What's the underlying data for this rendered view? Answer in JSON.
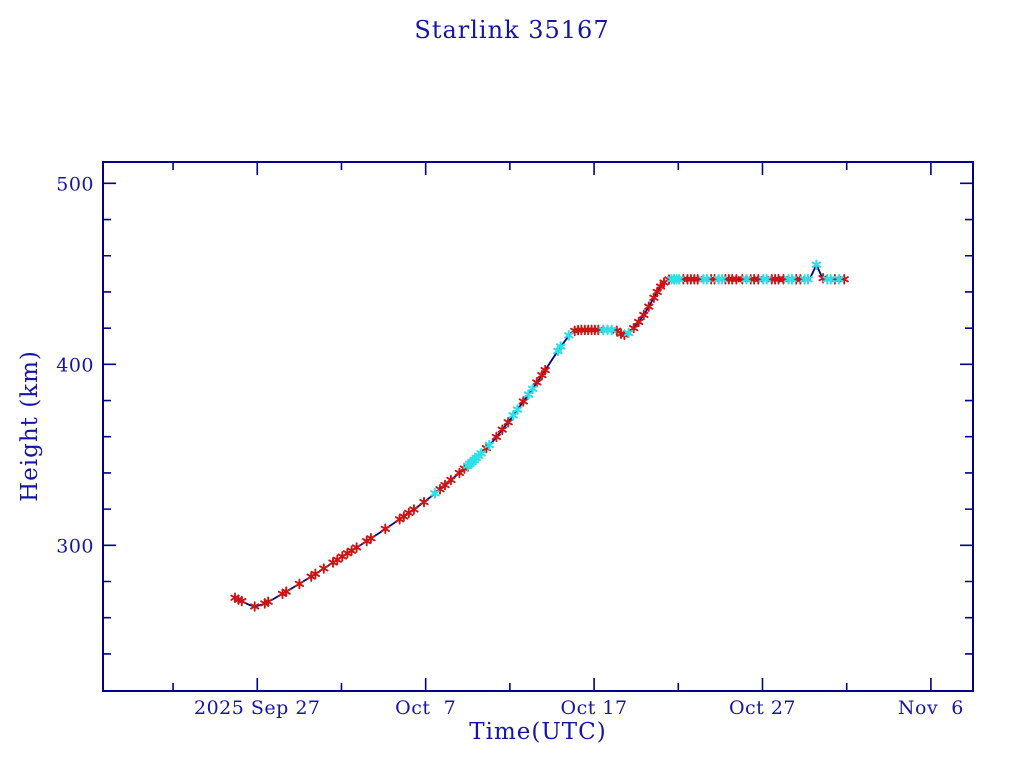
{
  "title": "Starlink 35167",
  "colors": {
    "text": "#1414aa",
    "frame": "#00008b",
    "line": "#000088",
    "marker_red": "#cc1414",
    "marker_cyan": "#2edfe6"
  },
  "chart_data": {
    "type": "line",
    "title": "Starlink 35167",
    "xlabel": "Time(UTC)",
    "ylabel": "Height (km)",
    "x_unit": "days since 2025 Sep 27 00:00 UTC",
    "y_unit": "km",
    "grid": false,
    "legend": "none",
    "x_range": [
      -9.16,
      42.5
    ],
    "y_range": [
      219.5,
      511.8
    ],
    "x_major_ticks": [
      {
        "t": 0,
        "label": "2025 Sep 27"
      },
      {
        "t": 10,
        "label": "Oct  7"
      },
      {
        "t": 20,
        "label": "Oct 17"
      },
      {
        "t": 30,
        "label": "Oct 27"
      },
      {
        "t": 40,
        "label": "Nov  6"
      }
    ],
    "x_minor_ticks": [
      -5,
      5,
      15,
      25,
      35
    ],
    "y_major_ticks": [
      {
        "v": 300,
        "label": "300"
      },
      {
        "v": 400,
        "label": "400"
      },
      {
        "v": 500,
        "label": "500"
      }
    ],
    "y_minor_ticks": [
      240,
      260,
      280,
      320,
      340,
      360,
      380,
      420,
      440,
      460,
      480
    ],
    "line": [
      [
        -1.32,
        271
      ],
      [
        -0.9,
        269
      ],
      [
        -0.5,
        267.2
      ],
      [
        -0.14,
        266.2
      ],
      [
        0.3,
        267.3
      ],
      [
        0.9,
        270
      ],
      [
        1.6,
        273.8
      ],
      [
        2.3,
        277.6
      ],
      [
        3,
        281.6
      ],
      [
        3.7,
        285.7
      ],
      [
        4.4,
        289.9
      ],
      [
        5.1,
        294.1
      ],
      [
        5.8,
        298.2
      ],
      [
        6.5,
        302.3
      ],
      [
        7.2,
        306.5
      ],
      [
        7.9,
        310.9
      ],
      [
        8.6,
        315.3
      ],
      [
        9.3,
        319.8
      ],
      [
        10,
        324.6
      ],
      [
        10.7,
        329.8
      ],
      [
        11.4,
        335.3
      ],
      [
        12.1,
        340.8
      ],
      [
        12.7,
        345.6
      ],
      [
        13.3,
        350.8
      ],
      [
        13.9,
        356.5
      ],
      [
        14.5,
        363.3
      ],
      [
        15.1,
        370.6
      ],
      [
        15.7,
        378.2
      ],
      [
        16.3,
        385.8
      ],
      [
        16.9,
        394
      ],
      [
        17.5,
        402.5
      ],
      [
        18,
        409.5
      ],
      [
        18.4,
        414.5
      ],
      [
        18.7,
        417.5
      ],
      [
        19,
        418.8
      ],
      [
        19.4,
        419
      ],
      [
        21.3,
        419
      ],
      [
        21.55,
        417.2
      ],
      [
        21.75,
        416.2
      ],
      [
        22,
        417
      ],
      [
        22.3,
        419.5
      ],
      [
        22.7,
        424
      ],
      [
        23.1,
        429.5
      ],
      [
        23.5,
        436
      ],
      [
        23.9,
        442.5
      ],
      [
        24.2,
        445.5
      ],
      [
        24.5,
        447
      ],
      [
        32.8,
        447
      ],
      [
        33.2,
        455
      ],
      [
        33.55,
        447.8
      ],
      [
        33.9,
        447
      ],
      [
        34.9,
        447
      ]
    ],
    "markers": [
      [
        -1.32,
        271,
        "r"
      ],
      [
        -1.12,
        270,
        "r"
      ],
      [
        -0.92,
        269.2,
        "r"
      ],
      [
        -0.15,
        266.2,
        "r"
      ],
      [
        0.45,
        267.9,
        "r"
      ],
      [
        0.65,
        268.8,
        "r"
      ],
      [
        1.5,
        273.2,
        "r"
      ],
      [
        1.72,
        274.4,
        "r"
      ],
      [
        2.5,
        278.7,
        "r"
      ],
      [
        3.2,
        282.7,
        "r"
      ],
      [
        3.45,
        284.2,
        "r"
      ],
      [
        3.95,
        287.2,
        "r"
      ],
      [
        4.5,
        290.5,
        "r"
      ],
      [
        4.75,
        292,
        "r"
      ],
      [
        5.05,
        293.8,
        "r"
      ],
      [
        5.35,
        295.6,
        "r"
      ],
      [
        5.6,
        297,
        "r"
      ],
      [
        5.9,
        298.8,
        "r"
      ],
      [
        6.5,
        302.3,
        "r"
      ],
      [
        6.75,
        303.9,
        "r"
      ],
      [
        7.6,
        309.1,
        "r"
      ],
      [
        8.45,
        314.4,
        "r"
      ],
      [
        8.7,
        315.9,
        "r"
      ],
      [
        9,
        317.9,
        "r"
      ],
      [
        9.3,
        319.8,
        "r"
      ],
      [
        9.9,
        323.9,
        "r"
      ],
      [
        10.55,
        328.7,
        "c"
      ],
      [
        10.85,
        331,
        "r"
      ],
      [
        11.15,
        333.3,
        "r"
      ],
      [
        11.5,
        336.1,
        "r"
      ],
      [
        12,
        340,
        "r"
      ],
      [
        12.3,
        342.4,
        "r"
      ],
      [
        12.5,
        344,
        "c"
      ],
      [
        12.62,
        345,
        "c"
      ],
      [
        12.75,
        346,
        "c"
      ],
      [
        12.88,
        347.1,
        "c"
      ],
      [
        13,
        348.2,
        "c"
      ],
      [
        13.15,
        349.5,
        "c"
      ],
      [
        13.3,
        350.8,
        "c"
      ],
      [
        13.6,
        353.7,
        "r"
      ],
      [
        13.78,
        355.4,
        "c"
      ],
      [
        14.2,
        359.9,
        "r"
      ],
      [
        14.55,
        363.9,
        "r"
      ],
      [
        14.9,
        368,
        "r"
      ],
      [
        15.2,
        371.8,
        "c"
      ],
      [
        15.45,
        375,
        "c"
      ],
      [
        15.8,
        379.5,
        "r"
      ],
      [
        16.1,
        383.3,
        "c"
      ],
      [
        16.35,
        386.5,
        "c"
      ],
      [
        16.6,
        390,
        "r"
      ],
      [
        16.9,
        394,
        "r"
      ],
      [
        17.1,
        396.8,
        "r"
      ],
      [
        17.85,
        407.4,
        "c"
      ],
      [
        18.02,
        409.8,
        "c"
      ],
      [
        18.5,
        416,
        "c"
      ],
      [
        18.85,
        418.5,
        "r"
      ],
      [
        19.05,
        418.9,
        "r"
      ],
      [
        19.25,
        419,
        "r"
      ],
      [
        19.45,
        419,
        "r"
      ],
      [
        19.65,
        419,
        "r"
      ],
      [
        19.85,
        419,
        "r"
      ],
      [
        20.05,
        419,
        "r"
      ],
      [
        20.25,
        419,
        "r"
      ],
      [
        20.55,
        419,
        "c"
      ],
      [
        20.8,
        419,
        "c"
      ],
      [
        21.05,
        419,
        "c"
      ],
      [
        21.35,
        418.6,
        "r"
      ],
      [
        21.6,
        416.9,
        "r"
      ],
      [
        21.8,
        416.3,
        "r"
      ],
      [
        22.05,
        417.3,
        "c"
      ],
      [
        22.35,
        420,
        "r"
      ],
      [
        22.65,
        423.4,
        "r"
      ],
      [
        22.95,
        427.3,
        "r"
      ],
      [
        23.25,
        431.9,
        "r"
      ],
      [
        23.55,
        436.8,
        "r"
      ],
      [
        23.75,
        440,
        "r"
      ],
      [
        23.95,
        443,
        "r"
      ],
      [
        24.15,
        445.2,
        "r"
      ],
      [
        24.45,
        446.9,
        "r"
      ],
      [
        24.6,
        447,
        "c"
      ],
      [
        24.75,
        447,
        "c"
      ],
      [
        24.9,
        447,
        "c"
      ],
      [
        25.05,
        447,
        "c"
      ],
      [
        25.3,
        447,
        "r"
      ],
      [
        25.55,
        447,
        "r"
      ],
      [
        25.75,
        447,
        "r"
      ],
      [
        25.95,
        447,
        "r"
      ],
      [
        26.15,
        447,
        "r"
      ],
      [
        26.5,
        447,
        "c"
      ],
      [
        26.7,
        447,
        "c"
      ],
      [
        26.95,
        447,
        "r"
      ],
      [
        27.15,
        447,
        "r"
      ],
      [
        27.4,
        447,
        "c"
      ],
      [
        27.6,
        447,
        "c"
      ],
      [
        27.8,
        447,
        "r"
      ],
      [
        28,
        447,
        "r"
      ],
      [
        28.2,
        447,
        "r"
      ],
      [
        28.45,
        447,
        "r"
      ],
      [
        28.8,
        447,
        "r"
      ],
      [
        29.05,
        447,
        "c"
      ],
      [
        29.3,
        447,
        "r"
      ],
      [
        29.5,
        447,
        "r"
      ],
      [
        29.75,
        447,
        "r"
      ],
      [
        30.05,
        447,
        "c"
      ],
      [
        30.25,
        447,
        "c"
      ],
      [
        30.55,
        447,
        "r"
      ],
      [
        30.75,
        447,
        "r"
      ],
      [
        30.95,
        447,
        "r"
      ],
      [
        31.25,
        447,
        "r"
      ],
      [
        31.55,
        447,
        "c"
      ],
      [
        31.75,
        447,
        "c"
      ],
      [
        32,
        447,
        "r"
      ],
      [
        32.25,
        447,
        "r"
      ],
      [
        32.5,
        447,
        "c"
      ],
      [
        32.7,
        447,
        "c"
      ],
      [
        33.2,
        455,
        "c"
      ],
      [
        33.6,
        447.6,
        "r"
      ],
      [
        33.85,
        447,
        "c"
      ],
      [
        34.05,
        447,
        "c"
      ],
      [
        34.3,
        447,
        "r"
      ],
      [
        34.55,
        447,
        "c"
      ],
      [
        34.85,
        447,
        "r"
      ]
    ]
  }
}
